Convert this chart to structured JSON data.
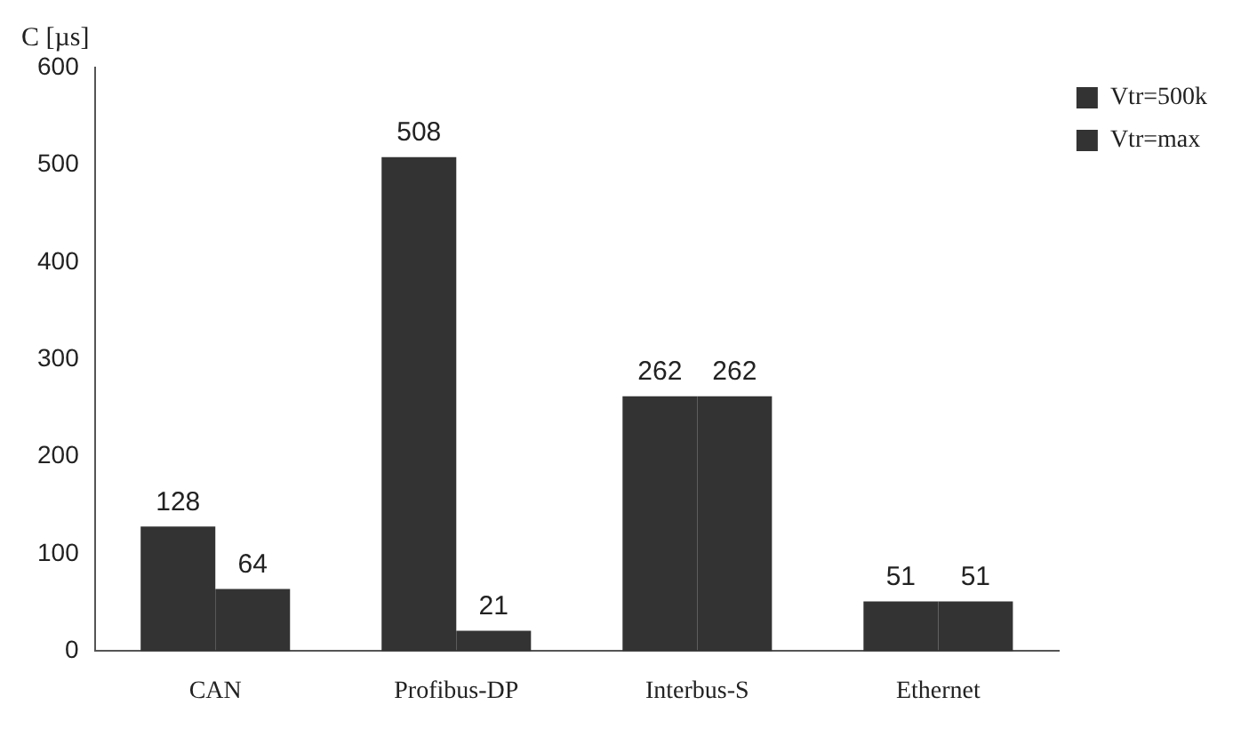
{
  "chart_data": {
    "type": "bar",
    "ylabel": "C [µs]",
    "categories": [
      "CAN",
      "Profibus-DP",
      "Interbus-S",
      "Ethernet"
    ],
    "series": [
      {
        "name": "Vtr=500k",
        "color": "#333333",
        "values": [
          128,
          508,
          262,
          51
        ]
      },
      {
        "name": "Vtr=max",
        "color": "#333333",
        "values": [
          64,
          21,
          262,
          51
        ]
      }
    ],
    "ylim": [
      0,
      600
    ],
    "yticks": [
      0,
      100,
      200,
      300,
      400,
      500,
      600
    ],
    "grid": false,
    "legend": "top right",
    "data_labels": true
  }
}
